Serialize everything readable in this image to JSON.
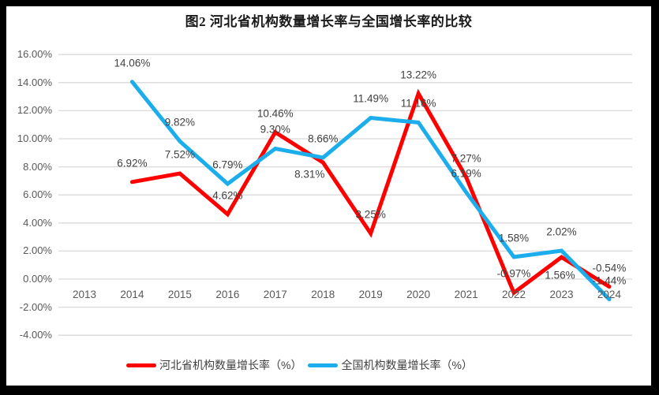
{
  "frame": {
    "border_color": "#000000",
    "chart_background": "#FFFFFF"
  },
  "colors": {
    "grid": "#DADADA",
    "axis_text": "#595959",
    "data_label_text": "#404040",
    "title_text": "#1A1A1A",
    "hebei_series": "#FF0000",
    "national_series": "#1CAEEC"
  },
  "chart_data": {
    "type": "line",
    "title": "图2 河北省机构数量增长率与全国增长率的比较",
    "categories": [
      "2013",
      "2014",
      "2015",
      "2016",
      "2017",
      "2018",
      "2019",
      "2020",
      "2021",
      "2022",
      "2023",
      "2024"
    ],
    "series": [
      {
        "name": "河北省机构数量增长率（%）",
        "color": "#FF0000",
        "values": [
          null,
          6.92,
          7.52,
          4.62,
          10.46,
          8.31,
          3.25,
          13.22,
          7.27,
          -0.97,
          1.56,
          -0.54
        ],
        "labels": [
          "",
          "6.92%",
          "7.52%",
          "4.62%",
          "10.46%",
          "8.31%",
          "3.25%",
          "13.22%",
          "7.27%",
          "-0.97%",
          "1.56%",
          "-0.54%"
        ]
      },
      {
        "name": "全国机构数量增长率（%）",
        "color": "#1CAEEC",
        "values": [
          null,
          14.06,
          9.82,
          6.79,
          9.3,
          8.66,
          11.49,
          11.16,
          6.19,
          1.58,
          2.02,
          -1.44
        ],
        "labels": [
          "",
          "14.06%",
          "9.82%",
          "6.79%",
          "9.30%",
          "8.66%",
          "11.49%",
          "11.16%",
          "6.19%",
          "1.58%",
          "2.02%",
          "-1.44%"
        ]
      }
    ],
    "y_axis": {
      "ticks": [
        "16.00%",
        "14.00%",
        "12.00%",
        "10.00%",
        "8.00%",
        "6.00%",
        "4.00%",
        "2.00%",
        "0.00%",
        "-2.00%",
        "-4.00%"
      ],
      "tick_values": [
        16,
        14,
        12,
        10,
        8,
        6,
        4,
        2,
        0,
        -2,
        -4
      ],
      "min": -4,
      "max": 16,
      "step": 2
    },
    "grid": true,
    "legend_position": "bottom",
    "legend": [
      "河北省机构数量增长率（%）",
      "全国机构数量增长率（%）"
    ]
  }
}
